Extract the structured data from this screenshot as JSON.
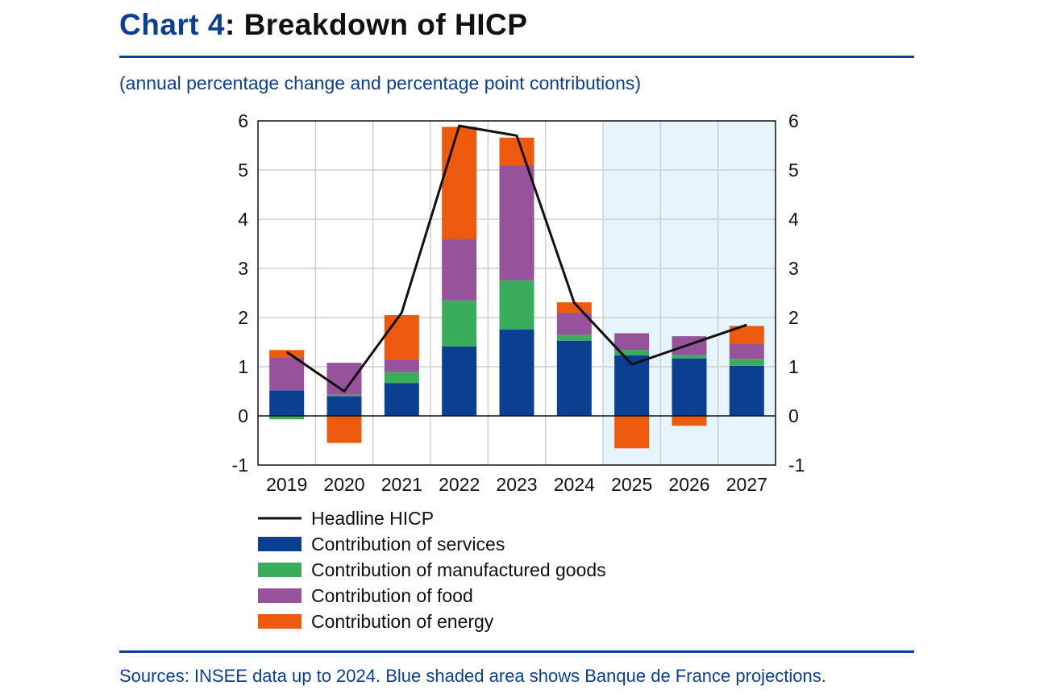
{
  "header": {
    "chart_num": "Chart 4",
    "chart_title": ": Breakdown of HICP",
    "subtitle": "(annual percentage change and percentage point contributions)"
  },
  "footer": {
    "source": "Sources: INSEE data up to 2024. Blue shaded area shows Banque de France projections."
  },
  "colors": {
    "brand": "#0b3f91",
    "services": "#0b3f91",
    "manufactured_goods": "#3aad5c",
    "food": "#96529b",
    "energy": "#ee5a0d",
    "headline": "#111111",
    "projection_shade": "#e6f4fb",
    "grid": "#cfcfcf"
  },
  "chart_data": {
    "type": "bar",
    "stacked": true,
    "title": "Breakdown of HICP",
    "subtitle": "(annual percentage change and percentage point contributions)",
    "categories": [
      "2019",
      "2020",
      "2021",
      "2022",
      "2023",
      "2024",
      "2025",
      "2026",
      "2027"
    ],
    "ylim": [
      -1,
      6
    ],
    "yticks": [
      -1,
      0,
      1,
      2,
      3,
      4,
      5,
      6
    ],
    "y2ticks": [
      -1,
      0,
      1,
      2,
      3,
      4,
      5,
      6
    ],
    "grid": true,
    "legend_position": "bottom",
    "projection_categories": [
      "2025",
      "2026",
      "2027"
    ],
    "series": [
      {
        "name": "Contribution of services",
        "key": "services",
        "type": "bar",
        "values": [
          0.52,
          0.4,
          0.67,
          1.41,
          1.76,
          1.53,
          1.23,
          1.17,
          1.02
        ]
      },
      {
        "name": "Contribution of manufactured goods",
        "key": "manufactured_goods",
        "type": "bar",
        "values": [
          -0.07,
          0.03,
          0.22,
          0.94,
          1.0,
          0.12,
          0.11,
          0.07,
          0.14
        ]
      },
      {
        "name": "Contribution of food",
        "key": "food",
        "type": "bar",
        "values": [
          0.67,
          0.65,
          0.26,
          1.25,
          2.33,
          0.44,
          0.34,
          0.38,
          0.3
        ]
      },
      {
        "name": "Contribution of energy",
        "key": "energy",
        "type": "bar",
        "values": [
          0.15,
          -0.55,
          0.9,
          2.28,
          0.57,
          0.22,
          -0.66,
          -0.2,
          0.37
        ]
      },
      {
        "name": "Headline HICP",
        "key": "headline",
        "type": "line",
        "values": [
          1.3,
          0.5,
          2.1,
          5.9,
          5.7,
          2.3,
          1.05,
          1.45,
          1.85
        ]
      }
    ]
  }
}
